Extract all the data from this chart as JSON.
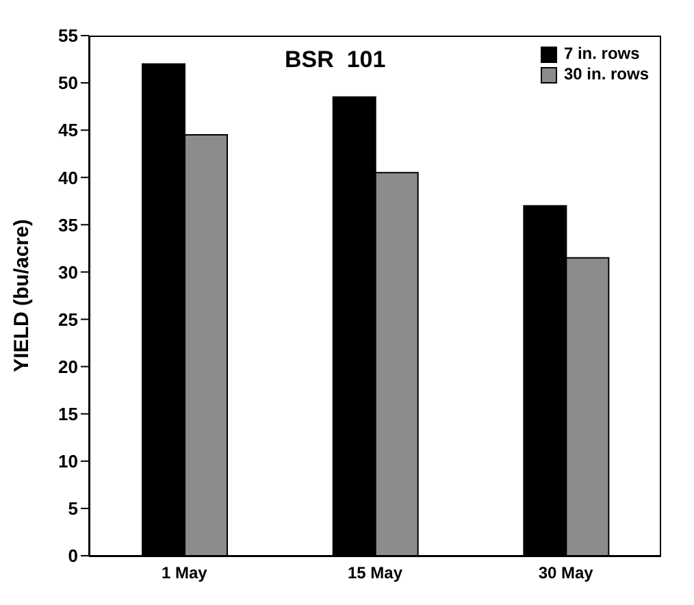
{
  "chart_data": {
    "type": "bar",
    "title": "BSR  101",
    "ylabel": "YIELD  (bu/acre)",
    "categories": [
      "1 May",
      "15 May",
      "30 May"
    ],
    "series": [
      {
        "name": "7 in. rows",
        "color": "#000000",
        "values": [
          52,
          48.5,
          37
        ]
      },
      {
        "name": "30 in. rows",
        "color": "#8c8c8c",
        "values": [
          44.5,
          40.5,
          31.5
        ]
      }
    ],
    "ylim": [
      0,
      55
    ],
    "yticks": [
      0,
      5,
      10,
      15,
      20,
      25,
      30,
      35,
      40,
      45,
      50,
      55
    ],
    "legend": "top right"
  }
}
